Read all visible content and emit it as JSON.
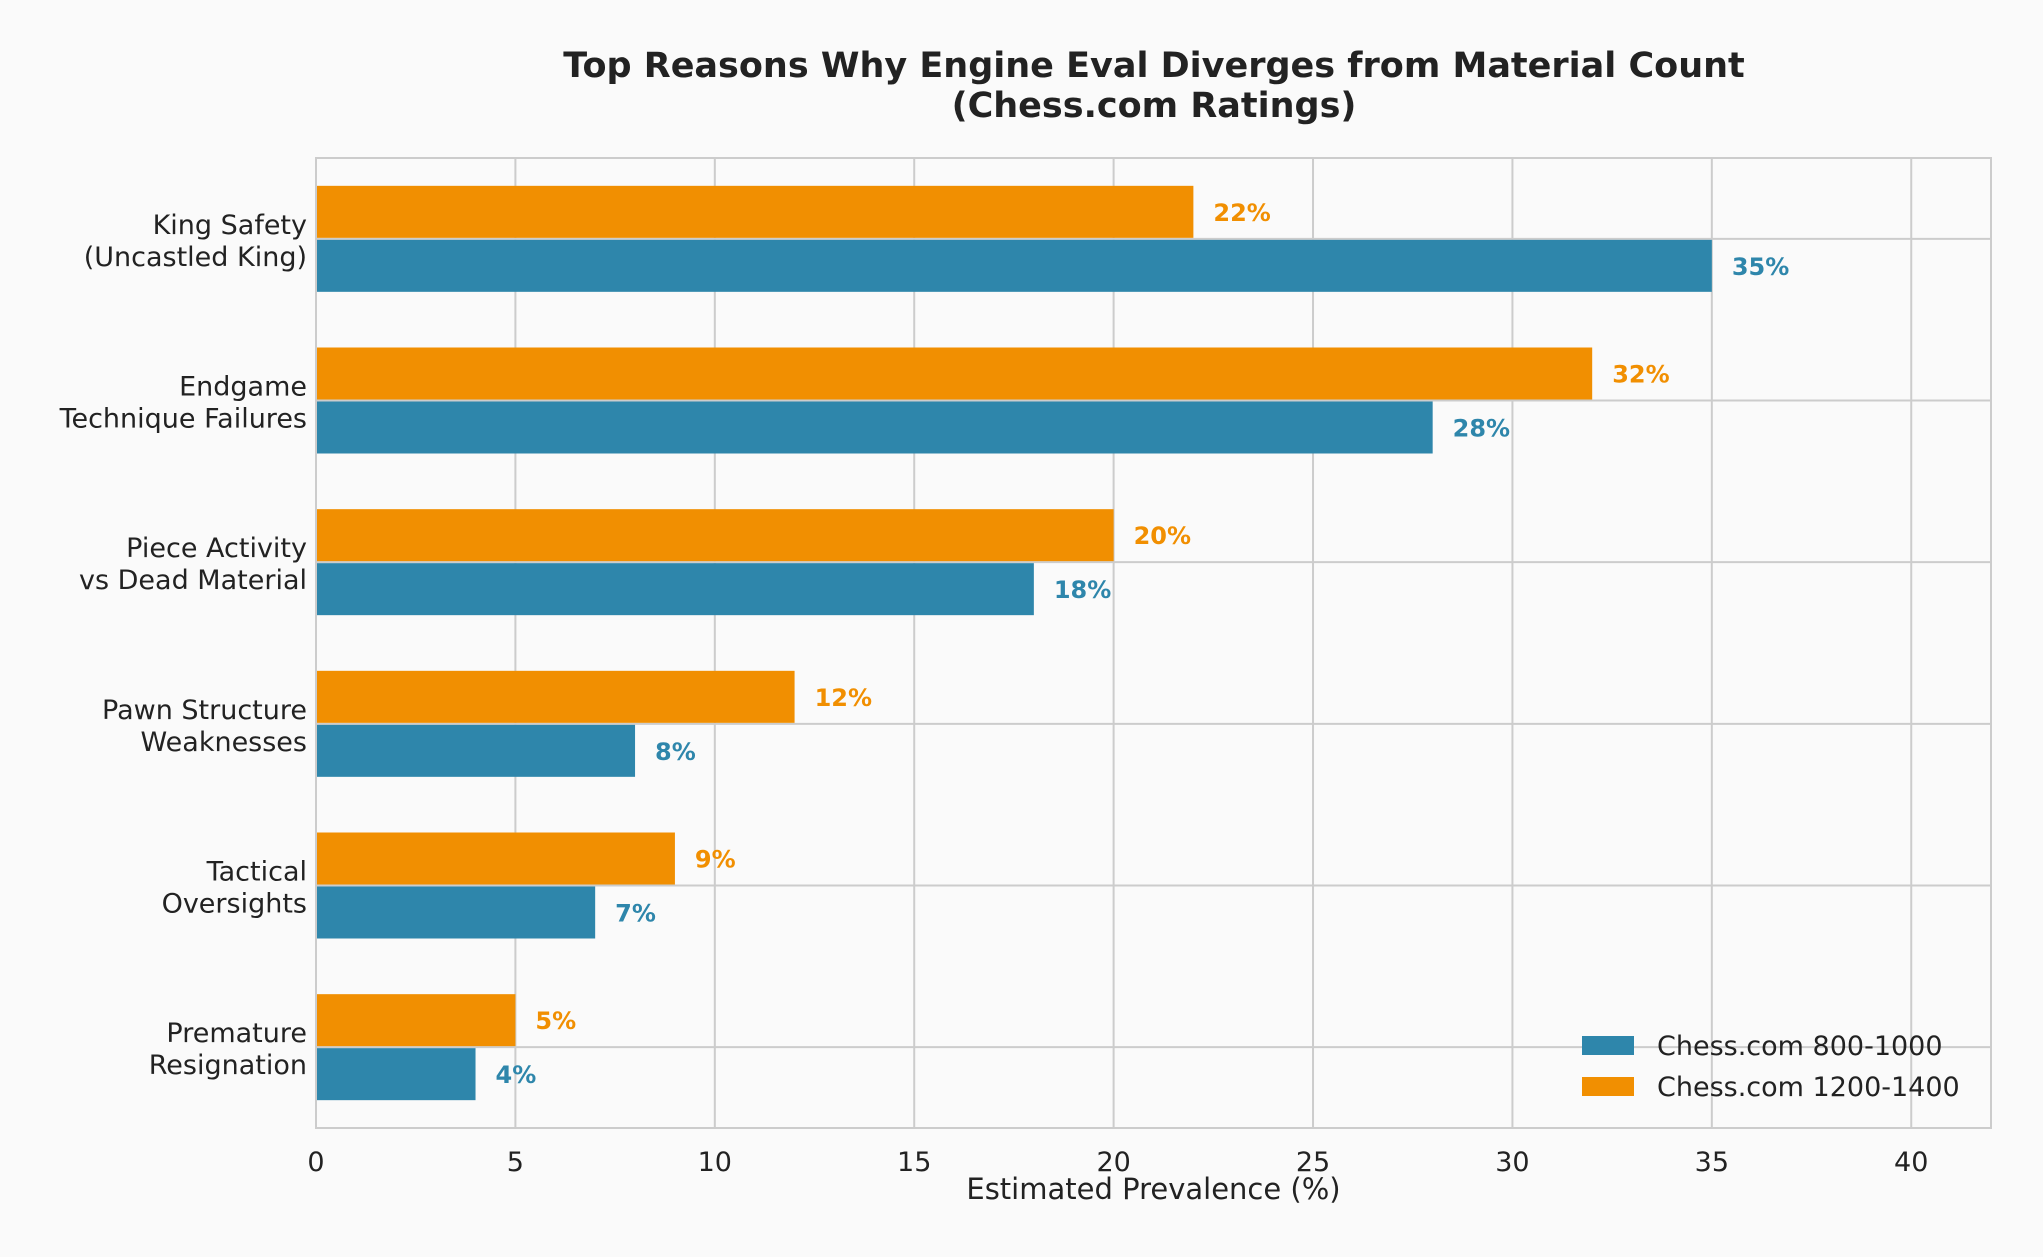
{
  "chart_data": {
    "type": "bar",
    "orientation": "horizontal",
    "title": [
      "Top Reasons Why Engine Eval Diverges from Material Count",
      "(Chess.com Ratings)"
    ],
    "xlabel": "Estimated Prevalence (%)",
    "ylabel": "",
    "xlim": [
      0,
      42
    ],
    "xticks": [
      0,
      5,
      10,
      15,
      20,
      25,
      30,
      35,
      40
    ],
    "grid": true,
    "legend_position": "bottom-right",
    "value_label_suffix": "%",
    "categories": [
      [
        "King Safety",
        "(Uncastled King)"
      ],
      [
        "Endgame",
        "Technique Failures"
      ],
      [
        "Piece Activity",
        "vs Dead Material"
      ],
      [
        "Pawn Structure",
        "Weaknesses"
      ],
      [
        "Tactical",
        "Oversights"
      ],
      [
        "Premature",
        "Resignation"
      ]
    ],
    "series": [
      {
        "name": "Chess.com 800-1000",
        "color": "#2e86ab",
        "values": [
          35,
          28,
          18,
          8,
          7,
          4
        ]
      },
      {
        "name": "Chess.com 1200-1400",
        "color": "#f18f01",
        "values": [
          22,
          32,
          20,
          12,
          9,
          5
        ]
      }
    ]
  }
}
